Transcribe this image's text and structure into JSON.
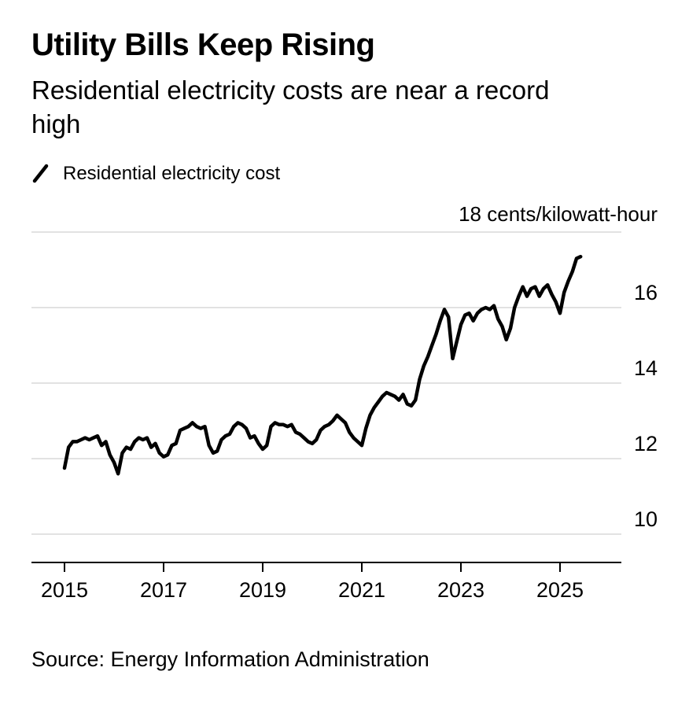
{
  "header": {
    "title": "Utility Bills Keep Rising",
    "subtitle": "Residential electricity costs are near a record high"
  },
  "legend": {
    "label": "Residential electricity cost"
  },
  "footer": {
    "source": "Source: Energy Information Administration"
  },
  "chart_data": {
    "type": "line",
    "title": "Utility Bills Keep Rising",
    "subtitle": "Residential electricity costs are near a record high",
    "unit_label": "18 cents/kilowatt-hour",
    "ylabel": "cents/kilowatt-hour",
    "ylim": [
      10,
      18
    ],
    "y_ticks": [
      10,
      12,
      14,
      16,
      18
    ],
    "y_labeled_ticks": [
      10,
      12,
      14,
      16
    ],
    "x_ticks": [
      2015,
      2017,
      2019,
      2021,
      2023,
      2025
    ],
    "x_start": 2015,
    "x_step": 0.0833333,
    "grid": "horizontal",
    "grid_color": "#d8d8d8",
    "line_color": "#000000",
    "axis_color": "#000000",
    "legend_position": "top-left",
    "series": [
      {
        "name": "Residential electricity cost",
        "values": [
          11.75,
          12.3,
          12.45,
          12.45,
          12.5,
          12.55,
          12.5,
          12.55,
          12.6,
          12.35,
          12.45,
          12.1,
          11.9,
          11.6,
          12.15,
          12.3,
          12.25,
          12.45,
          12.55,
          12.5,
          12.55,
          12.3,
          12.4,
          12.15,
          12.05,
          12.1,
          12.35,
          12.4,
          12.75,
          12.8,
          12.85,
          12.95,
          12.85,
          12.8,
          12.85,
          12.35,
          12.15,
          12.2,
          12.5,
          12.6,
          12.65,
          12.85,
          12.95,
          12.9,
          12.8,
          12.55,
          12.6,
          12.4,
          12.25,
          12.35,
          12.85,
          12.95,
          12.9,
          12.9,
          12.85,
          12.9,
          12.7,
          12.65,
          12.55,
          12.45,
          12.4,
          12.5,
          12.75,
          12.85,
          12.9,
          13.0,
          13.15,
          13.05,
          12.95,
          12.7,
          12.55,
          12.45,
          12.35,
          12.8,
          13.15,
          13.35,
          13.5,
          13.65,
          13.75,
          13.7,
          13.65,
          13.55,
          13.7,
          13.45,
          13.4,
          13.55,
          14.1,
          14.45,
          14.7,
          15.0,
          15.3,
          15.65,
          15.95,
          15.75,
          14.65,
          15.1,
          15.55,
          15.8,
          15.85,
          15.65,
          15.85,
          15.95,
          16.0,
          15.95,
          16.05,
          15.7,
          15.5,
          15.15,
          15.45,
          16.0,
          16.3,
          16.55,
          16.3,
          16.5,
          16.55,
          16.3,
          16.5,
          16.6,
          16.35,
          16.15,
          15.85,
          16.4,
          16.7,
          16.95,
          17.3,
          17.35
        ]
      }
    ]
  }
}
